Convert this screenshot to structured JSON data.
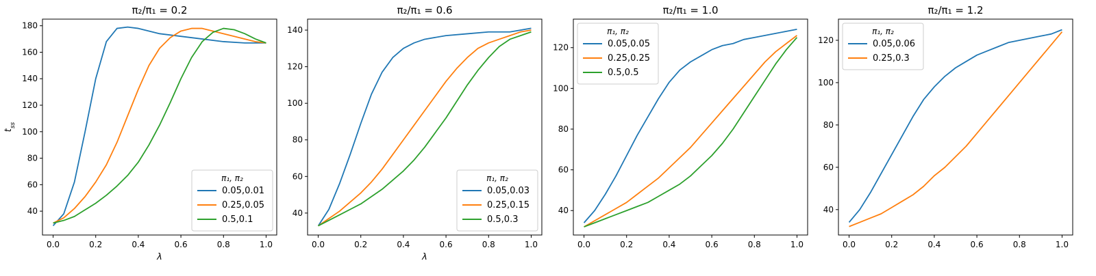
{
  "figure": {
    "background": "#ffffff"
  },
  "series_colors": [
    "#1f77b4",
    "#ff7f0e",
    "#2ca02c"
  ],
  "chart_data": [
    {
      "type": "line",
      "title": "π₂/π₁ = 0.2",
      "xlabel": "λ",
      "ylabel": "t_ss",
      "xlim": [
        -0.05,
        1.05
      ],
      "ylim": [
        22,
        185
      ],
      "xticks": [
        0.0,
        0.2,
        0.4,
        0.6,
        0.8,
        1.0
      ],
      "xtick_labels": [
        "0.0",
        "0.2",
        "0.4",
        "0.6",
        "0.8",
        "1.0"
      ],
      "yticks": [
        40,
        60,
        80,
        100,
        120,
        140,
        160,
        180
      ],
      "ytick_labels": [
        "40",
        "60",
        "80",
        "100",
        "120",
        "140",
        "160",
        "180"
      ],
      "legend": {
        "title": "π₁, π₂",
        "placement": "lower-right"
      },
      "series": [
        {
          "name": "0.05,0.01",
          "x": [
            0,
            0.05,
            0.1,
            0.15,
            0.2,
            0.25,
            0.3,
            0.35,
            0.4,
            0.45,
            0.5,
            0.6,
            0.7,
            0.8,
            0.9,
            1.0
          ],
          "values": [
            29,
            38,
            62,
            100,
            140,
            168,
            178,
            179,
            178,
            176,
            174,
            172,
            170,
            168,
            167,
            167
          ]
        },
        {
          "name": "0.25,0.05",
          "x": [
            0,
            0.05,
            0.1,
            0.15,
            0.2,
            0.25,
            0.3,
            0.35,
            0.4,
            0.45,
            0.5,
            0.55,
            0.6,
            0.65,
            0.7,
            0.75,
            0.8,
            0.85,
            0.9,
            0.95,
            1.0
          ],
          "values": [
            31,
            35,
            42,
            51,
            62,
            75,
            92,
            112,
            132,
            150,
            163,
            171,
            176,
            178,
            178,
            176,
            174,
            172,
            170,
            168,
            167
          ]
        },
        {
          "name": "0.5,0.1",
          "x": [
            0,
            0.05,
            0.1,
            0.15,
            0.2,
            0.25,
            0.3,
            0.35,
            0.4,
            0.45,
            0.5,
            0.55,
            0.6,
            0.65,
            0.7,
            0.75,
            0.8,
            0.85,
            0.9,
            0.95,
            1.0
          ],
          "values": [
            31,
            33,
            36,
            41,
            46,
            52,
            59,
            67,
            77,
            90,
            105,
            122,
            140,
            156,
            168,
            175,
            178,
            177,
            174,
            170,
            167
          ]
        }
      ]
    },
    {
      "type": "line",
      "title": "π₂/π₁ = 0.6",
      "xlabel": "λ",
      "ylabel": "",
      "xlim": [
        -0.05,
        1.05
      ],
      "ylim": [
        28,
        146
      ],
      "xticks": [
        0.0,
        0.2,
        0.4,
        0.6,
        0.8,
        1.0
      ],
      "xtick_labels": [
        "0.0",
        "0.2",
        "0.4",
        "0.6",
        "0.8",
        "1.0"
      ],
      "yticks": [
        40,
        60,
        80,
        100,
        120,
        140
      ],
      "ytick_labels": [
        "40",
        "60",
        "80",
        "100",
        "120",
        "140"
      ],
      "legend": {
        "title": "π₁, π₂",
        "placement": "lower-right"
      },
      "series": [
        {
          "name": "0.05,0.03",
          "x": [
            0,
            0.05,
            0.1,
            0.15,
            0.2,
            0.25,
            0.3,
            0.35,
            0.4,
            0.45,
            0.5,
            0.6,
            0.7,
            0.8,
            0.9,
            1.0
          ],
          "values": [
            33,
            42,
            56,
            72,
            89,
            105,
            117,
            125,
            130,
            133,
            135,
            137,
            138,
            139,
            139,
            141
          ]
        },
        {
          "name": "0.25,0.15",
          "x": [
            0,
            0.05,
            0.1,
            0.15,
            0.2,
            0.25,
            0.3,
            0.35,
            0.4,
            0.45,
            0.5,
            0.55,
            0.6,
            0.65,
            0.7,
            0.75,
            0.8,
            0.85,
            0.9,
            0.95,
            1.0
          ],
          "values": [
            33,
            37,
            41,
            46,
            51,
            57,
            64,
            72,
            80,
            88,
            96,
            104,
            112,
            119,
            125,
            130,
            133,
            135,
            137,
            139,
            140
          ]
        },
        {
          "name": "0.5,0.3",
          "x": [
            0,
            0.05,
            0.1,
            0.15,
            0.2,
            0.25,
            0.3,
            0.35,
            0.4,
            0.45,
            0.5,
            0.55,
            0.6,
            0.65,
            0.7,
            0.75,
            0.8,
            0.85,
            0.9,
            0.95,
            1.0
          ],
          "values": [
            33,
            36,
            39,
            42,
            45,
            49,
            53,
            58,
            63,
            69,
            76,
            84,
            92,
            101,
            110,
            118,
            125,
            131,
            135,
            137,
            139
          ]
        }
      ]
    },
    {
      "type": "line",
      "title": "π₂/π₁ = 1.0",
      "xlabel": "",
      "ylabel": "",
      "xlim": [
        -0.05,
        1.05
      ],
      "ylim": [
        28,
        134
      ],
      "xticks": [
        0.0,
        0.2,
        0.4,
        0.6,
        0.8,
        1.0
      ],
      "xtick_labels": [
        "0.0",
        "0.2",
        "0.4",
        "0.6",
        "0.8",
        "1.0"
      ],
      "yticks": [
        40,
        60,
        80,
        100,
        120
      ],
      "ytick_labels": [
        "40",
        "60",
        "80",
        "100",
        "120"
      ],
      "legend": {
        "title": "π₁, π₂",
        "placement": "upper-left"
      },
      "series": [
        {
          "name": "0.05,0.05",
          "x": [
            0,
            0.05,
            0.1,
            0.15,
            0.2,
            0.25,
            0.3,
            0.35,
            0.4,
            0.45,
            0.5,
            0.55,
            0.6,
            0.65,
            0.7,
            0.75,
            0.8,
            0.85,
            0.9,
            0.95,
            1.0
          ],
          "values": [
            34,
            40,
            48,
            57,
            67,
            77,
            86,
            95,
            103,
            109,
            113,
            116,
            119,
            121,
            122,
            124,
            125,
            126,
            127,
            128,
            129
          ]
        },
        {
          "name": "0.25,0.25",
          "x": [
            0,
            0.05,
            0.1,
            0.15,
            0.2,
            0.25,
            0.3,
            0.35,
            0.4,
            0.45,
            0.5,
            0.55,
            0.6,
            0.65,
            0.7,
            0.75,
            0.8,
            0.85,
            0.9,
            0.95,
            1.0
          ],
          "values": [
            32,
            35,
            38,
            41,
            44,
            48,
            52,
            56,
            61,
            66,
            71,
            77,
            83,
            89,
            95,
            101,
            107,
            113,
            118,
            122,
            126
          ]
        },
        {
          "name": "0.5,0.5",
          "x": [
            0,
            0.05,
            0.1,
            0.15,
            0.2,
            0.25,
            0.3,
            0.35,
            0.4,
            0.45,
            0.5,
            0.55,
            0.6,
            0.65,
            0.7,
            0.75,
            0.8,
            0.85,
            0.9,
            0.95,
            1.0
          ],
          "values": [
            32,
            34,
            36,
            38,
            40,
            42,
            44,
            47,
            50,
            53,
            57,
            62,
            67,
            73,
            80,
            88,
            96,
            104,
            112,
            119,
            125
          ]
        }
      ]
    },
    {
      "type": "line",
      "title": "π₂/π₁ = 1.2",
      "xlabel": "",
      "ylabel": "",
      "xlim": [
        -0.05,
        1.05
      ],
      "ylim": [
        28,
        130
      ],
      "xticks": [
        0.0,
        0.2,
        0.4,
        0.6,
        0.8,
        1.0
      ],
      "xtick_labels": [
        "0.0",
        "0.2",
        "0.4",
        "0.6",
        "0.8",
        "1.0"
      ],
      "yticks": [
        40,
        60,
        80,
        100,
        120
      ],
      "ytick_labels": [
        "40",
        "60",
        "80",
        "100",
        "120"
      ],
      "legend": {
        "title": "π₁, π₂",
        "placement": "upper-left"
      },
      "series": [
        {
          "name": "0.05,0.06",
          "x": [
            0,
            0.05,
            0.1,
            0.15,
            0.2,
            0.25,
            0.3,
            0.35,
            0.4,
            0.45,
            0.5,
            0.55,
            0.6,
            0.65,
            0.7,
            0.75,
            0.8,
            0.85,
            0.9,
            0.95,
            1.0
          ],
          "values": [
            34,
            40,
            48,
            57,
            66,
            75,
            84,
            92,
            98,
            103,
            107,
            110,
            113,
            115,
            117,
            119,
            120,
            121,
            122,
            123,
            125
          ]
        },
        {
          "name": "0.25,0.3",
          "x": [
            0,
            0.05,
            0.1,
            0.15,
            0.2,
            0.25,
            0.3,
            0.35,
            0.4,
            0.45,
            0.5,
            0.55,
            0.6,
            0.65,
            0.7,
            0.75,
            0.8,
            0.85,
            0.9,
            0.95,
            1.0
          ],
          "values": [
            32,
            34,
            36,
            38,
            41,
            44,
            47,
            51,
            56,
            60,
            65,
            70,
            76,
            82,
            88,
            94,
            100,
            106,
            112,
            118,
            124
          ]
        }
      ]
    }
  ]
}
